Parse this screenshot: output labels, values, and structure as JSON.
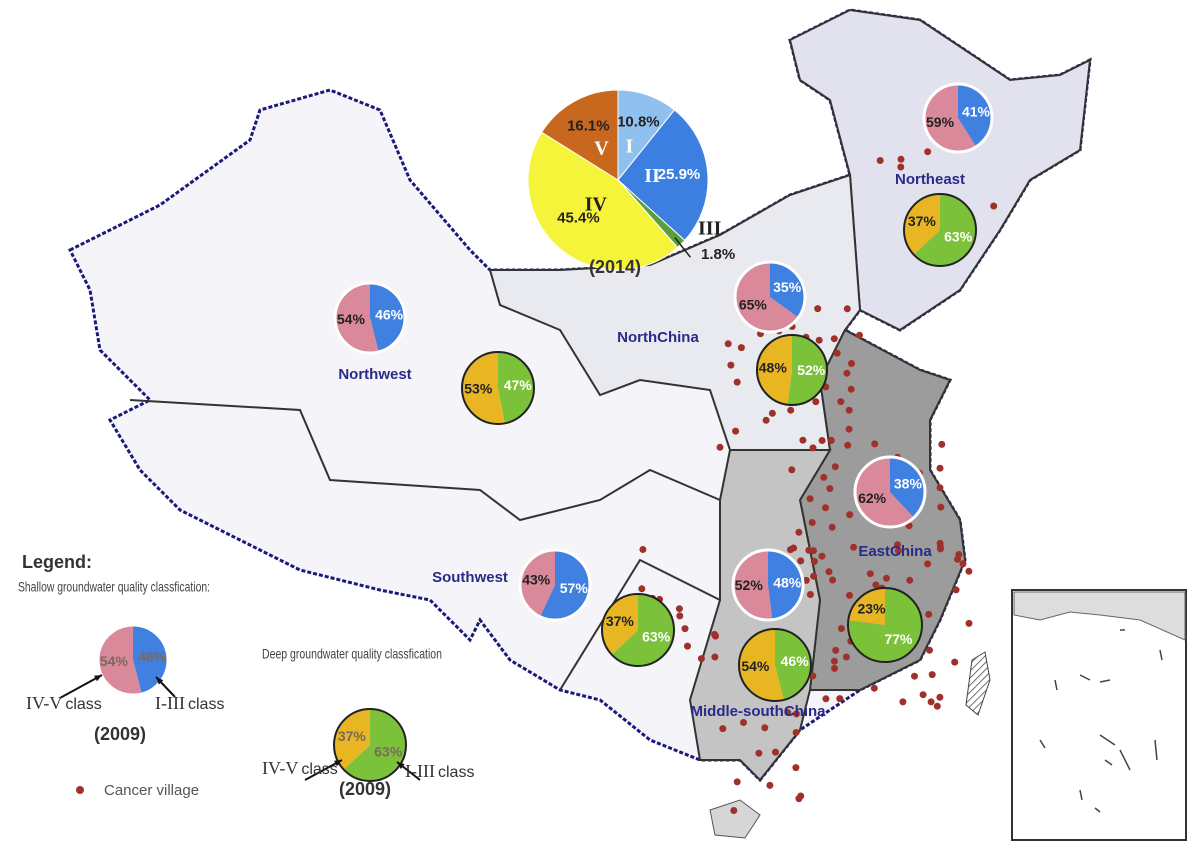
{
  "national_pie": {
    "labels": [
      "I",
      "II",
      "III",
      "IV",
      "V"
    ],
    "values": [
      10.8,
      25.9,
      1.8,
      45.4,
      16.1
    ],
    "value_labels": [
      "10.8%",
      "25.9%",
      "1.8%",
      "45.4%",
      "16.1%"
    ],
    "colors": [
      "#8fc0ee",
      "#3d7fe0",
      "#5aa03a",
      "#f6f43a",
      "#c8681e"
    ],
    "year": "(2014)"
  },
  "shallow_colors": [
    "#d9899a",
    "#3f80e0"
  ],
  "deep_colors": [
    "#e8b623",
    "#7cc13a"
  ],
  "regions": [
    {
      "name": "Northeast",
      "shallow": [
        59,
        41
      ],
      "shallow_labels": [
        "59%",
        "41%"
      ],
      "deep": [
        37,
        63
      ],
      "deep_labels": [
        "37%",
        "63%"
      ]
    },
    {
      "name": "NorthChina",
      "shallow": [
        65,
        35
      ],
      "shallow_labels": [
        "65%",
        "35%"
      ],
      "deep": [
        48,
        52
      ],
      "deep_labels": [
        "48%",
        "52%"
      ]
    },
    {
      "name": "Northwest",
      "shallow": [
        54,
        46
      ],
      "shallow_labels": [
        "54%",
        "46%"
      ],
      "deep": [
        53,
        47
      ],
      "deep_labels": [
        "53%",
        "47%"
      ]
    },
    {
      "name": "EastChina",
      "shallow": [
        62,
        38
      ],
      "shallow_labels": [
        "62%",
        "38%"
      ],
      "deep": [
        23,
        77
      ],
      "deep_labels": [
        "23%",
        "77%"
      ]
    },
    {
      "name": "Southwest",
      "shallow": [
        43,
        57
      ],
      "shallow_labels": [
        "43%",
        "57%"
      ],
      "deep": [
        37,
        63
      ],
      "deep_labels": [
        "37%",
        "63%"
      ]
    },
    {
      "name": "Middle-southChina",
      "shallow": [
        52,
        48
      ],
      "shallow_labels": [
        "52%",
        "48%"
      ],
      "deep": [
        54,
        46
      ],
      "deep_labels": [
        "54%",
        "46%"
      ]
    }
  ],
  "legend": {
    "title": "Legend:",
    "shallow_title": "Shallow groundwater quality classfication:",
    "shallow_example": [
      54,
      46
    ],
    "shallow_example_labels": [
      "54%",
      "46%"
    ],
    "deep_title": "Deep groundwater quality classfication",
    "deep_example": [
      37,
      63
    ],
    "deep_example_labels": [
      "37%",
      "63%"
    ],
    "low_class": "IV-V",
    "high_class": "I-III",
    "class_word": "class",
    "year": "(2009)",
    "cancer_village": "Cancer village"
  }
}
